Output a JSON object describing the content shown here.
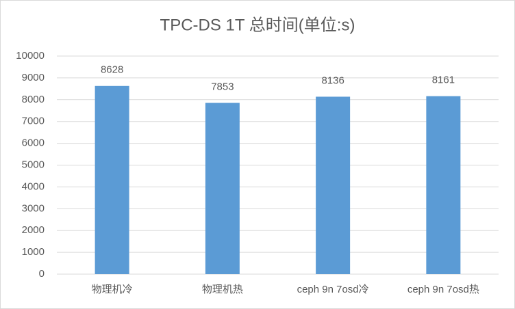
{
  "chart_data": {
    "type": "bar",
    "title": "TPC-DS 1T 总时间(单位:s)",
    "categories": [
      "物理机冷",
      "物理机热",
      "ceph 9n 7osd冷",
      "ceph 9n 7osd热"
    ],
    "values": [
      8628,
      7853,
      8136,
      8161
    ],
    "color": "#5b9bd5",
    "ylim": [
      0,
      10000
    ],
    "yticks": [
      0,
      1000,
      2000,
      3000,
      4000,
      5000,
      6000,
      7000,
      8000,
      9000,
      10000
    ],
    "grid": true
  }
}
